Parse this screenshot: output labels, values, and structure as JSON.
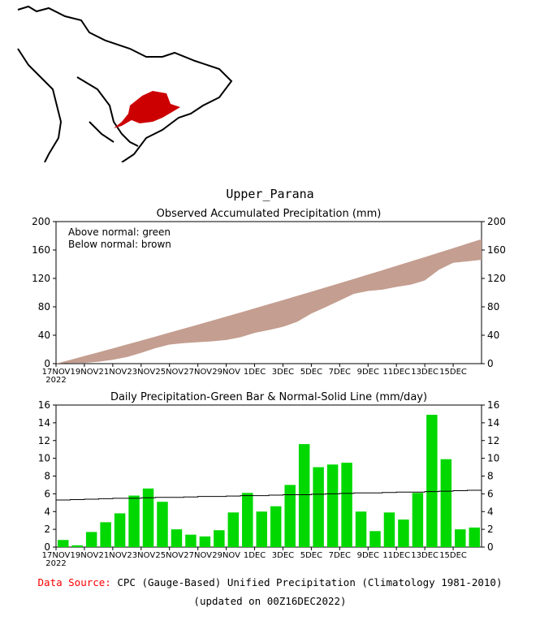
{
  "region_name": "Upper_Parana",
  "colors": {
    "band": "#c49e90",
    "bar": "#00d800",
    "region": "#cc0000",
    "source_label": "#ff0000"
  },
  "footer": {
    "source_label": "Data Source:",
    "source_text": "CPC (Gauge-Based) Unified Precipitation (Climatology 1981-2010)",
    "updated": "(updated on 00Z16DEC2022)"
  },
  "chart_data": [
    {
      "type": "area",
      "title": "Observed Accumulated Precipitation (mm)",
      "legend": [
        "Above normal: green",
        "Below normal: brown"
      ],
      "legend_placement": "top-left",
      "ylim": [
        0,
        200
      ],
      "yticks": [
        0,
        40,
        80,
        120,
        160,
        200
      ],
      "xticks": [
        "17NOV",
        "19NOV",
        "21NOV",
        "23NOV",
        "25NOV",
        "27NOV",
        "29NOV",
        "1DEC",
        "3DEC",
        "5DEC",
        "7DEC",
        "9DEC",
        "11DEC",
        "13DEC",
        "15DEC"
      ],
      "year_label": "2022",
      "note": "series computed as cumulative sums of daily observed and normal values",
      "end_observed": 145,
      "end_normal": 175
    },
    {
      "type": "bar",
      "title": "Daily Precipitation-Green Bar & Normal-Solid Line (mm/day)",
      "ylim": [
        0,
        16
      ],
      "yticks": [
        0,
        2,
        4,
        6,
        8,
        10,
        12,
        14,
        16
      ],
      "xticks": [
        "17NOV",
        "19NOV",
        "21NOV",
        "23NOV",
        "25NOV",
        "27NOV",
        "29NOV",
        "1DEC",
        "3DEC",
        "5DEC",
        "7DEC",
        "9DEC",
        "11DEC",
        "13DEC",
        "15DEC"
      ],
      "year_label": "2022",
      "days": [
        "17NOV",
        "18NOV",
        "19NOV",
        "20NOV",
        "21NOV",
        "22NOV",
        "23NOV",
        "24NOV",
        "25NOV",
        "26NOV",
        "27NOV",
        "28NOV",
        "29NOV",
        "30NOV",
        "1DEC",
        "2DEC",
        "3DEC",
        "4DEC",
        "5DEC",
        "6DEC",
        "7DEC",
        "8DEC",
        "9DEC",
        "10DEC",
        "11DEC",
        "12DEC",
        "13DEC",
        "14DEC",
        "15DEC",
        "16DEC"
      ],
      "values": [
        0.8,
        0.2,
        1.7,
        2.8,
        3.8,
        5.8,
        6.6,
        5.1,
        2.0,
        1.4,
        1.2,
        1.9,
        3.9,
        6.1,
        4.0,
        4.6,
        7.0,
        11.6,
        9.0,
        9.3,
        9.5,
        4.0,
        1.8,
        3.9,
        3.1,
        6.1,
        14.9,
        9.9,
        2.0,
        2.2
      ],
      "normal": [
        5.3,
        5.35,
        5.4,
        5.45,
        5.5,
        5.5,
        5.55,
        5.6,
        5.6,
        5.65,
        5.7,
        5.7,
        5.75,
        5.8,
        5.8,
        5.85,
        5.9,
        5.9,
        5.95,
        6.0,
        6.05,
        6.1,
        6.1,
        6.15,
        6.2,
        6.2,
        6.25,
        6.3,
        6.35,
        6.4
      ]
    }
  ]
}
